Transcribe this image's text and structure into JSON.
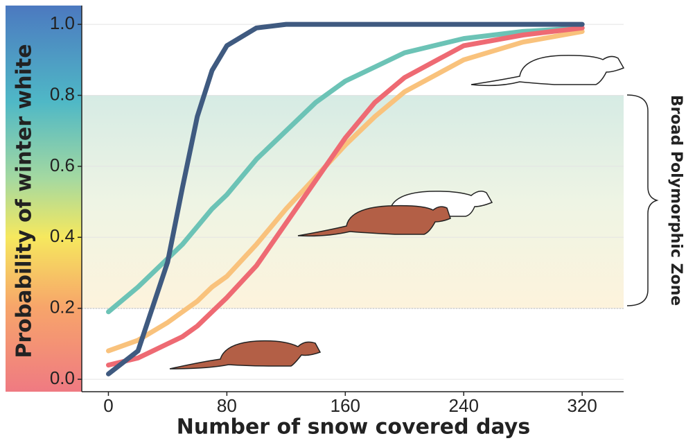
{
  "chart_data": {
    "type": "line",
    "x_label": "Number of snow covered days",
    "y_label": "Probability of winter white",
    "annotation": "Broad Polymorphic Zone",
    "shaded_range": [
      0.2,
      0.8
    ],
    "x": [
      0,
      20,
      40,
      50,
      60,
      70,
      80,
      100,
      120,
      140,
      160,
      180,
      200,
      240,
      280,
      320
    ],
    "series": [
      {
        "color": "#6cc3b6",
        "values": [
          0.19,
          0.26,
          0.34,
          0.38,
          0.43,
          0.48,
          0.52,
          0.62,
          0.7,
          0.78,
          0.84,
          0.88,
          0.92,
          0.96,
          0.98,
          0.99
        ]
      },
      {
        "color": "#f9c27c",
        "values": [
          0.08,
          0.11,
          0.16,
          0.19,
          0.22,
          0.26,
          0.29,
          0.38,
          0.48,
          0.57,
          0.66,
          0.74,
          0.81,
          0.9,
          0.95,
          0.98
        ]
      },
      {
        "color": "#ee6a73",
        "values": [
          0.04,
          0.06,
          0.1,
          0.12,
          0.15,
          0.19,
          0.23,
          0.32,
          0.44,
          0.56,
          0.68,
          0.78,
          0.85,
          0.94,
          0.97,
          0.99
        ]
      },
      {
        "color": "#3f5a80",
        "values": [
          0.015,
          0.08,
          0.33,
          0.54,
          0.74,
          0.87,
          0.94,
          0.99,
          1.0,
          1.0,
          1.0,
          1.0,
          1.0,
          1.0,
          1.0,
          1.0
        ]
      }
    ],
    "xlim": [
      -18,
      348
    ],
    "ylim": [
      -0.035,
      1.053
    ],
    "xticks": [
      0,
      80,
      160,
      240,
      320
    ],
    "yticks": [
      {
        "value": 0,
        "label": "0.0"
      },
      {
        "value": 0.2,
        "label": "0.2"
      },
      {
        "value": 0.4,
        "label": "0.4"
      },
      {
        "value": 0.6,
        "label": "0.6"
      },
      {
        "value": 0.8,
        "label": "0.8"
      },
      {
        "value": 1,
        "label": "1.0"
      }
    ]
  }
}
